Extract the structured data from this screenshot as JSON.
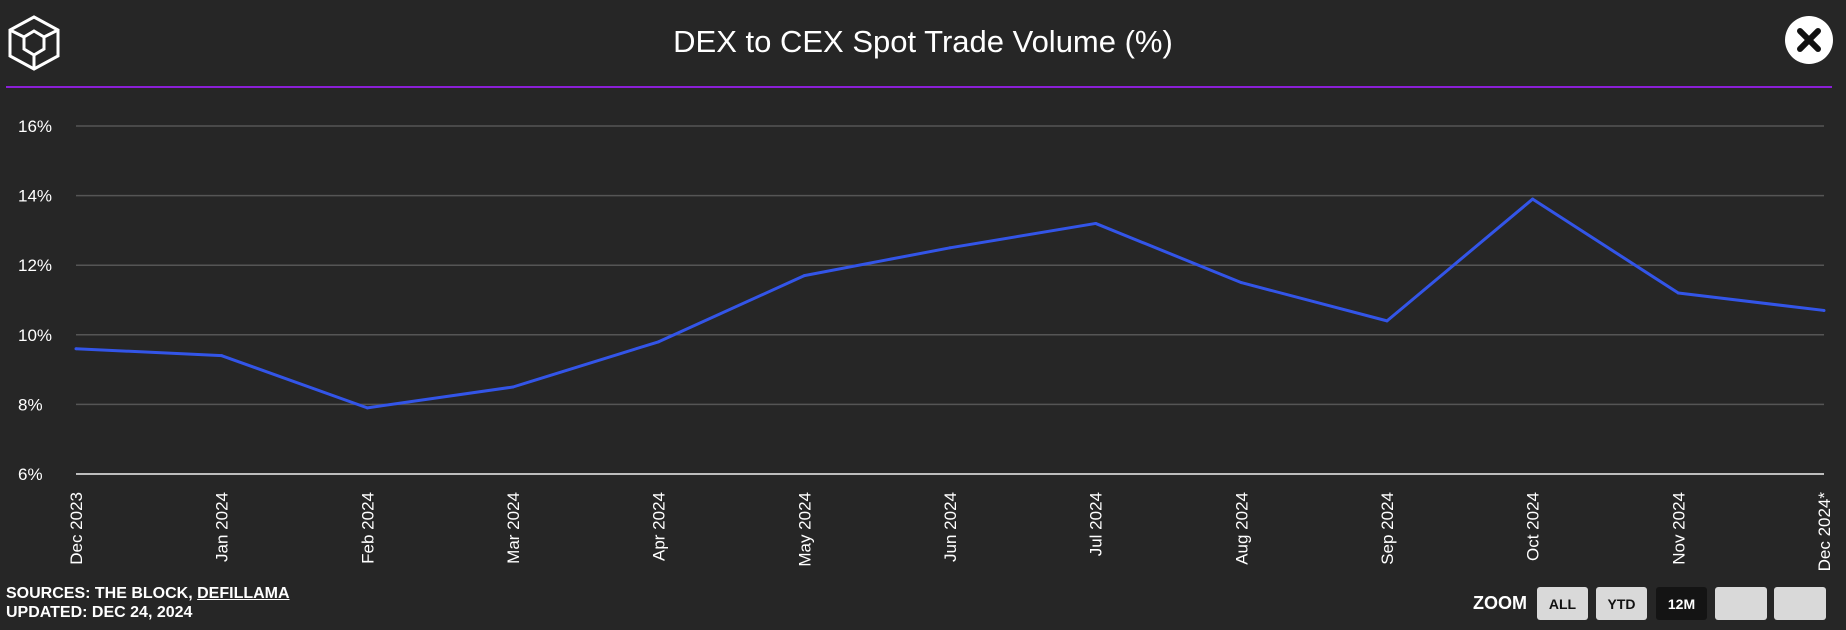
{
  "header": {
    "title": "DEX to CEX Spot Trade Volume (%)",
    "close_icon": "close-icon",
    "logo_icon": "cube-logo-icon"
  },
  "colors": {
    "background": "#262626",
    "line": "#3355e8",
    "divider": "#8a1fd6",
    "grid": "#555555"
  },
  "chart_data": {
    "type": "line",
    "title": "DEX to CEX Spot Trade Volume (%)",
    "categories": [
      "Dec 2023",
      "Jan 2024",
      "Feb 2024",
      "Mar 2024",
      "Apr 2024",
      "May 2024",
      "Jun 2024",
      "Jul 2024",
      "Aug 2024",
      "Sep 2024",
      "Oct 2024",
      "Nov 2024",
      "Dec 2024*"
    ],
    "series": [
      {
        "values": [
          9.6,
          9.4,
          7.9,
          8.5,
          9.8,
          11.7,
          12.5,
          13.2,
          11.5,
          10.4,
          13.9,
          11.2,
          10.7
        ]
      }
    ],
    "yticks": [
      "6%",
      "8%",
      "10%",
      "12%",
      "14%",
      "16%"
    ],
    "ylim": [
      6,
      16
    ],
    "grid": true,
    "legend": "none"
  },
  "footer": {
    "sources_label": "SOURCES: THE BLOCK, ",
    "sources_link": "DEFILLAMA",
    "updated": "UPDATED: DEC 24, 2024"
  },
  "zoom": {
    "label": "ZOOM",
    "buttons": [
      "ALL",
      "YTD",
      "12M",
      "",
      ""
    ],
    "active": "12M"
  }
}
